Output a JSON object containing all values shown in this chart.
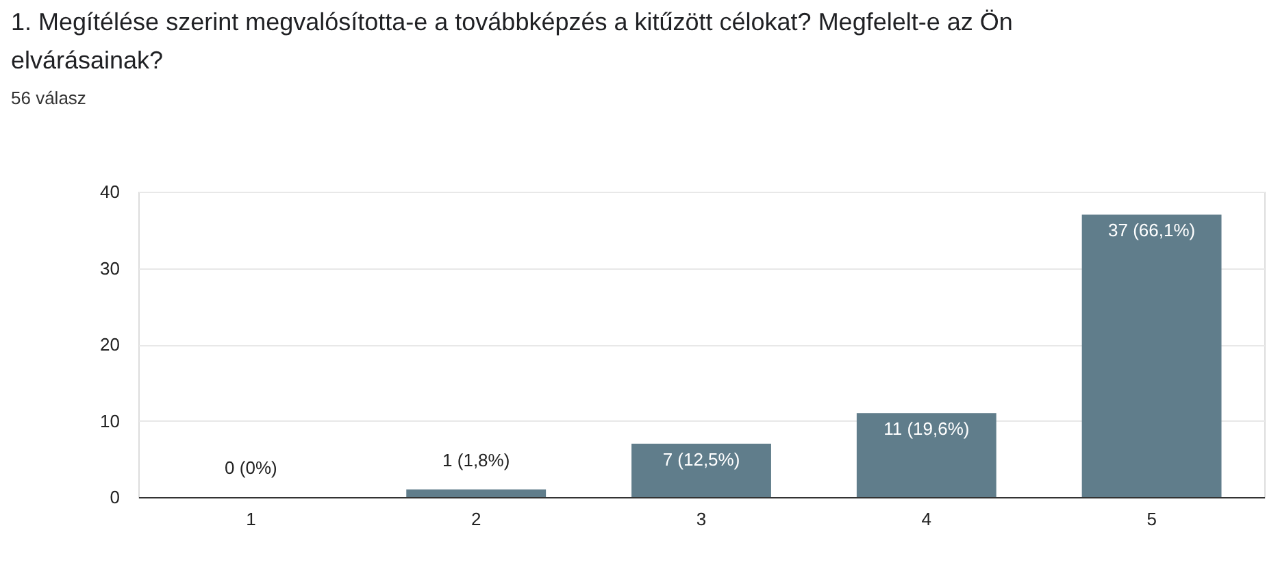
{
  "chart_data": {
    "type": "bar",
    "title": "1. Megítélése szerint megvalósította-e a továbbképzés a kitűzött célokat? Megfelelt-e az Ön elvárásainak?",
    "subtitle": "56 válasz",
    "categories": [
      "1",
      "2",
      "3",
      "4",
      "5"
    ],
    "values": [
      0,
      1,
      7,
      11,
      37
    ],
    "value_labels": [
      "0 (0%)",
      "1 (1,8%)",
      "7 (12,5%)",
      "11 (19,6%)",
      "37 (66,1%)"
    ],
    "color": "#607d8b",
    "ylim": [
      0,
      40
    ],
    "yticks": [
      0,
      10,
      20,
      30,
      40
    ],
    "grid": "y"
  }
}
